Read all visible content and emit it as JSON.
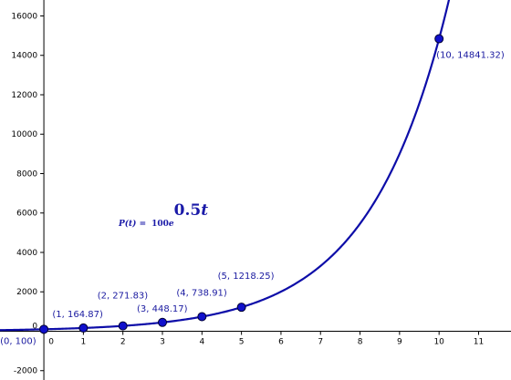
{
  "chart_data": {
    "type": "function-plot",
    "formula": {
      "lhs": "P(t) =",
      "coefficient": 100,
      "base": "e",
      "rate": 0.5,
      "variable": "t"
    },
    "curve_color": "#0d0da8",
    "point_color": "#1010cc",
    "x": [
      0,
      1,
      2,
      3,
      4,
      5,
      10
    ],
    "values": [
      100,
      164.87,
      271.83,
      448.17,
      738.91,
      1218.25,
      14841.32
    ],
    "value_labels": [
      "(0, 100)",
      "(1, 164.87)",
      "(2, 271.83)",
      "(3, 448.17)",
      "(4, 738.91)",
      "(5, 1218.25)",
      "(10, 14841.32)"
    ],
    "xlim": [
      -1.11,
      11.82
    ],
    "ylim": [
      -2474,
      16809
    ],
    "xticks": [
      0,
      1,
      2,
      3,
      4,
      5,
      6,
      7,
      8,
      9,
      10,
      11
    ],
    "yticks": [
      -2000,
      0,
      2000,
      4000,
      6000,
      8000,
      10000,
      12000,
      14000,
      16000
    ]
  }
}
